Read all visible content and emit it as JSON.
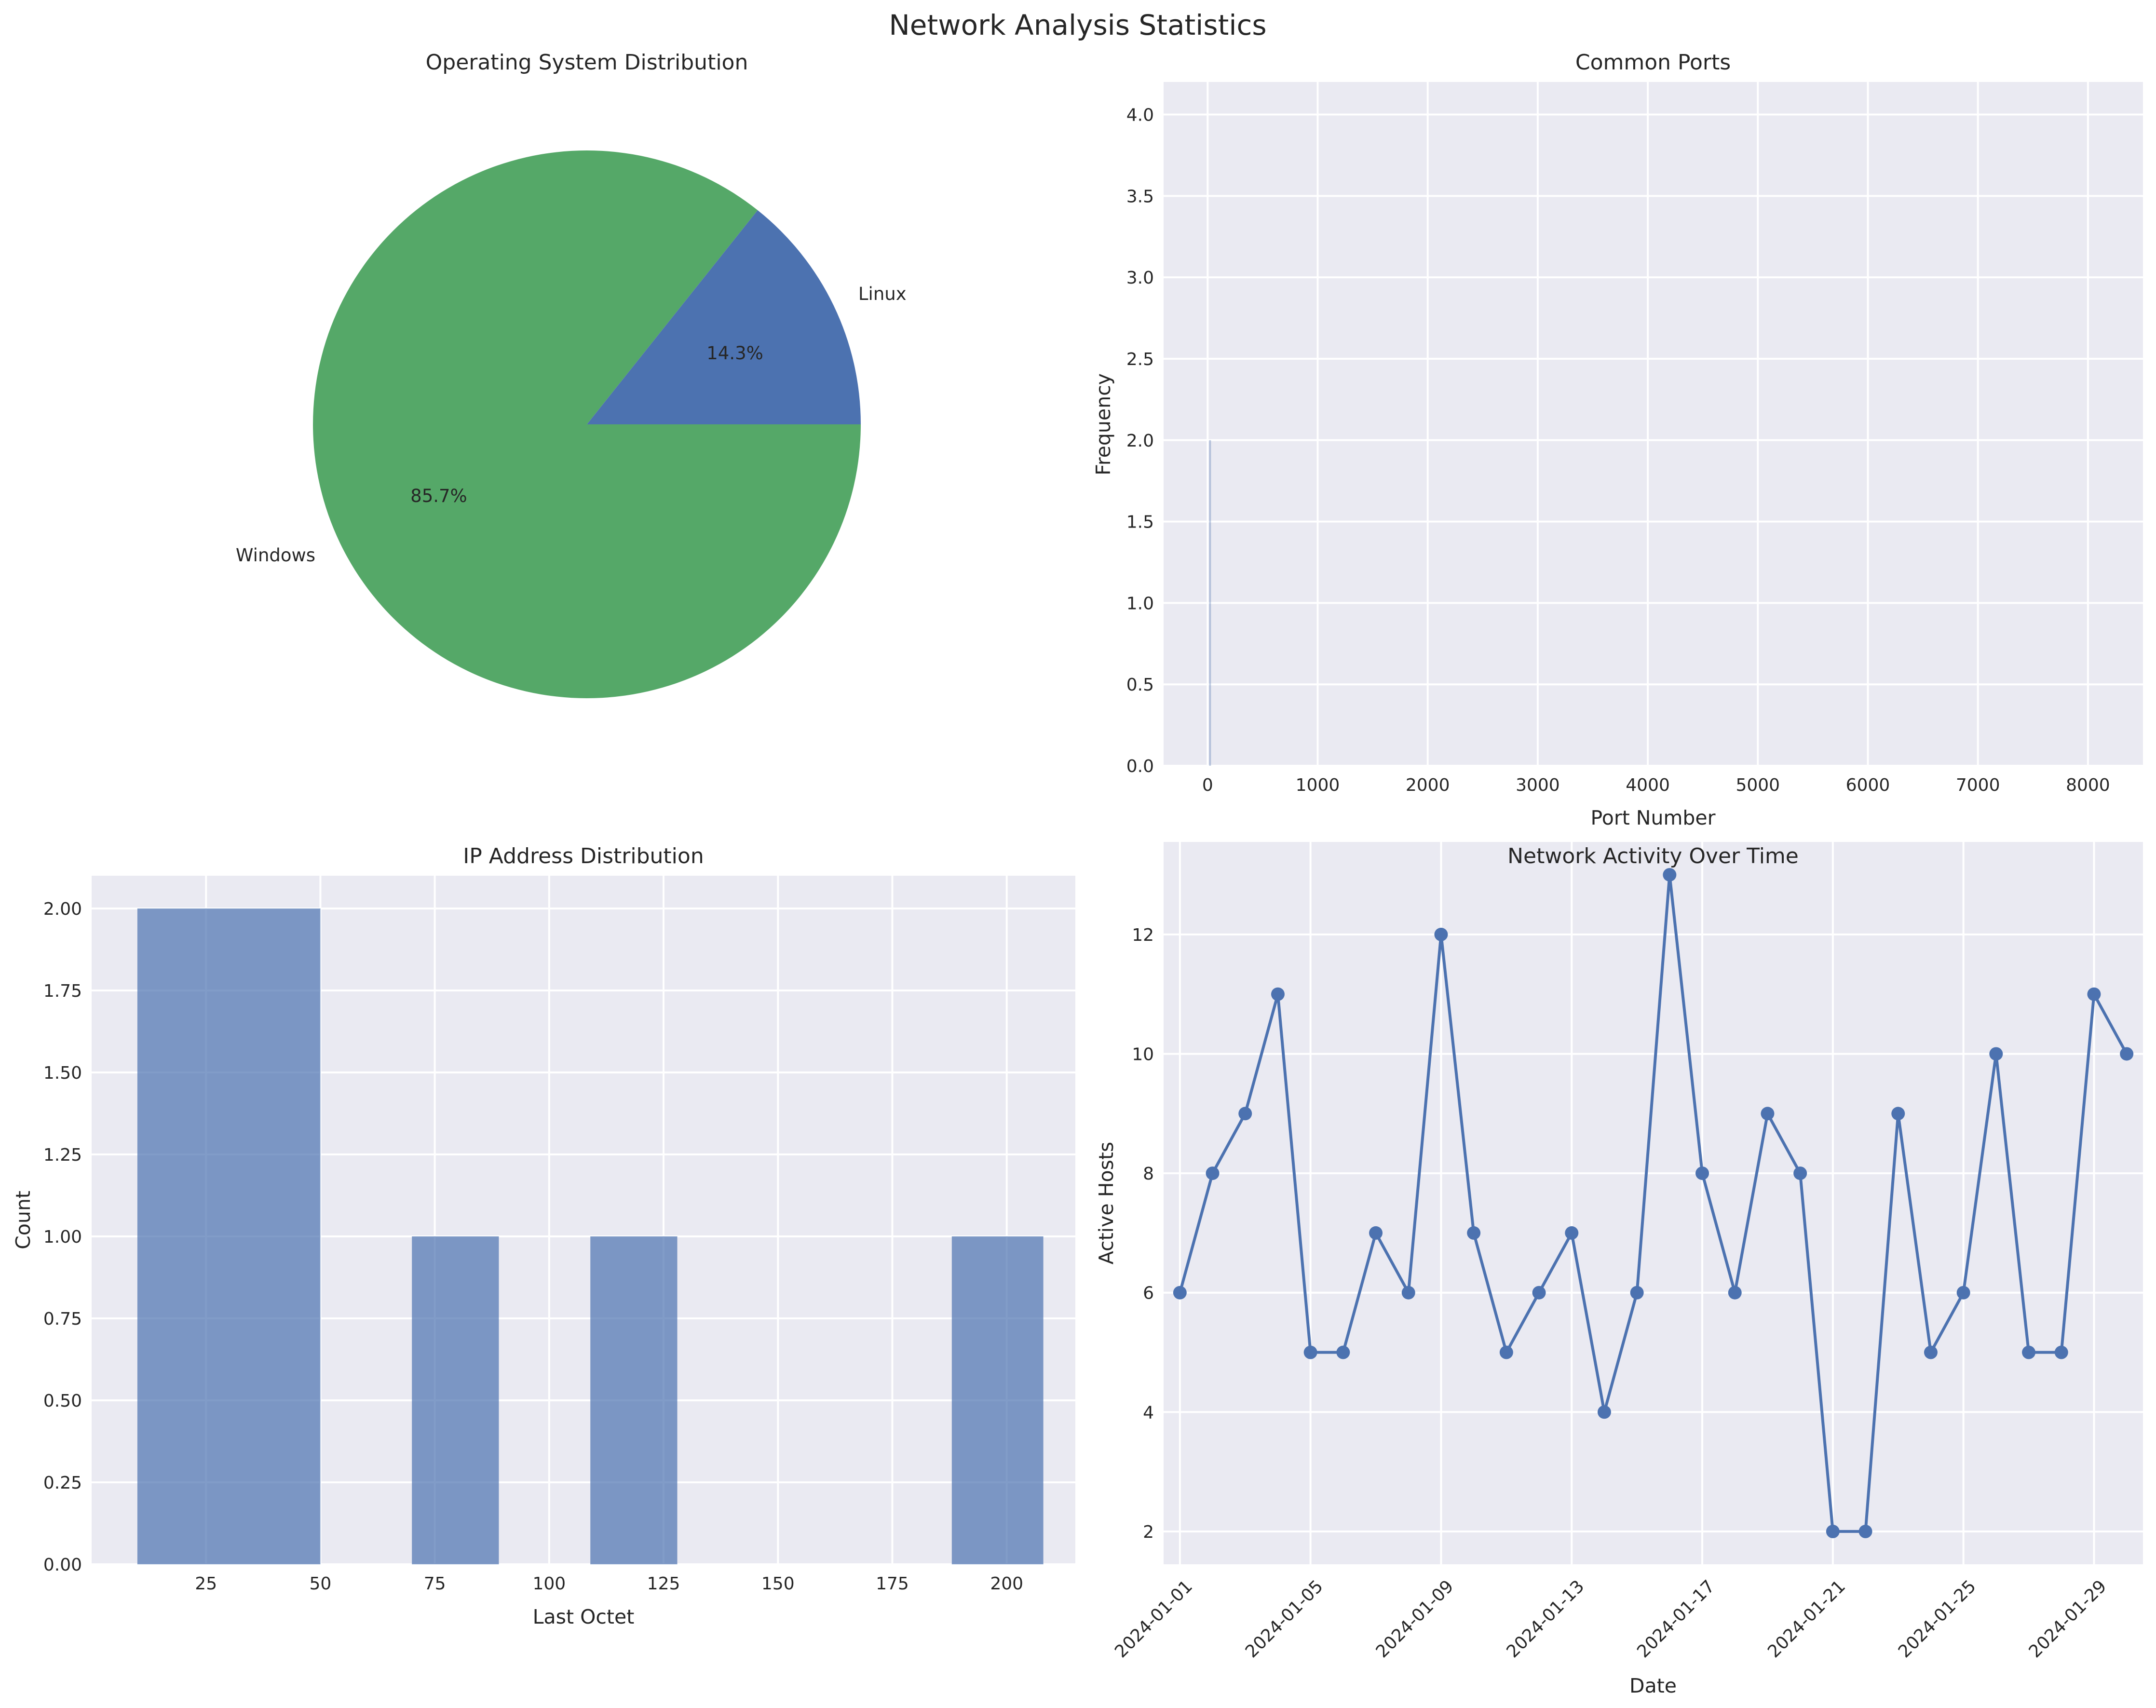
{
  "figure_title": "Network Analysis Statistics",
  "chart_data": [
    {
      "type": "pie",
      "title": "Operating System Distribution",
      "labels": [
        "Linux",
        "Windows"
      ],
      "values": [
        1,
        6
      ],
      "percent_labels": [
        "14.3%",
        "85.7%"
      ],
      "colors": [
        "#4c72b0",
        "#55a868"
      ],
      "start_angle": 0
    },
    {
      "type": "bar",
      "title": "Common Ports",
      "xlabel": "Port Number",
      "ylabel": "Frequency",
      "xlim": [
        -400,
        8500
      ],
      "ylim": [
        0,
        4.2
      ],
      "xticks": [
        0,
        1000,
        2000,
        3000,
        4000,
        5000,
        6000,
        7000,
        8000
      ],
      "xtick_labels": [
        "0",
        "1000",
        "2000",
        "3000",
        "4000",
        "5000",
        "6000",
        "7000",
        "8000"
      ],
      "yticks": [
        0,
        0.5,
        1,
        1.5,
        2,
        2.5,
        3,
        3.5,
        4
      ],
      "ytick_labels": [
        "0.0",
        "0.5",
        "1.0",
        "1.5",
        "2.0",
        "2.5",
        "3.0",
        "3.5",
        "4.0"
      ],
      "bars": [
        {
          "x": 22,
          "value": 2
        }
      ],
      "color": "#4c72b0",
      "grid": true
    },
    {
      "type": "bar",
      "title": "IP Address Distribution",
      "xlabel": "Last Octet",
      "ylabel": "Count",
      "xlim": [
        0,
        215
      ],
      "ylim": [
        0,
        2.1
      ],
      "xticks": [
        25,
        50,
        75,
        100,
        125,
        150,
        175,
        200
      ],
      "xtick_labels": [
        "25",
        "50",
        "75",
        "100",
        "125",
        "150",
        "175",
        "200"
      ],
      "yticks": [
        0,
        0.25,
        0.5,
        0.75,
        1,
        1.25,
        1.5,
        1.75,
        2
      ],
      "ytick_labels": [
        "0.00",
        "0.25",
        "0.50",
        "0.75",
        "1.00",
        "1.25",
        "1.50",
        "1.75",
        "2.00"
      ],
      "bins": [
        {
          "x0": 10,
          "x1": 50,
          "value": 2
        },
        {
          "x0": 70,
          "x1": 89,
          "value": 1
        },
        {
          "x0": 109,
          "x1": 128,
          "value": 1
        },
        {
          "x0": 188,
          "x1": 208,
          "value": 1
        }
      ],
      "color": "#4c72b0",
      "alpha": 0.7,
      "grid": true
    },
    {
      "type": "line",
      "title": "Network Activity Over Time",
      "xlabel": "Date",
      "ylabel": "Active Hosts",
      "x": [
        "2024-01-01",
        "2024-01-02",
        "2024-01-03",
        "2024-01-04",
        "2024-01-05",
        "2024-01-06",
        "2024-01-07",
        "2024-01-08",
        "2024-01-09",
        "2024-01-10",
        "2024-01-11",
        "2024-01-12",
        "2024-01-13",
        "2024-01-14",
        "2024-01-15",
        "2024-01-16",
        "2024-01-17",
        "2024-01-18",
        "2024-01-19",
        "2024-01-20",
        "2024-01-21",
        "2024-01-22",
        "2024-01-23",
        "2024-01-24",
        "2024-01-25",
        "2024-01-26",
        "2024-01-27",
        "2024-01-28",
        "2024-01-29",
        "2024-01-30"
      ],
      "values": [
        6,
        8,
        9,
        11,
        5,
        5,
        7,
        6,
        12,
        7,
        5,
        6,
        7,
        4,
        6,
        13,
        8,
        6,
        9,
        8,
        2,
        2,
        9,
        5,
        6,
        10,
        5,
        5,
        11,
        10
      ],
      "xlim": [
        "2023-12-31T12:00",
        "2024-01-30T12:00"
      ],
      "ylim": [
        1.45,
        13.55
      ],
      "xticks": [
        "2024-01-01",
        "2024-01-05",
        "2024-01-09",
        "2024-01-13",
        "2024-01-17",
        "2024-01-21",
        "2024-01-25",
        "2024-01-29"
      ],
      "yticks": [
        2,
        4,
        6,
        8,
        10,
        12
      ],
      "ytick_labels": [
        "2",
        "4",
        "6",
        "8",
        "10",
        "12"
      ],
      "color": "#4c72b0",
      "marker": "circle",
      "grid": true
    }
  ]
}
